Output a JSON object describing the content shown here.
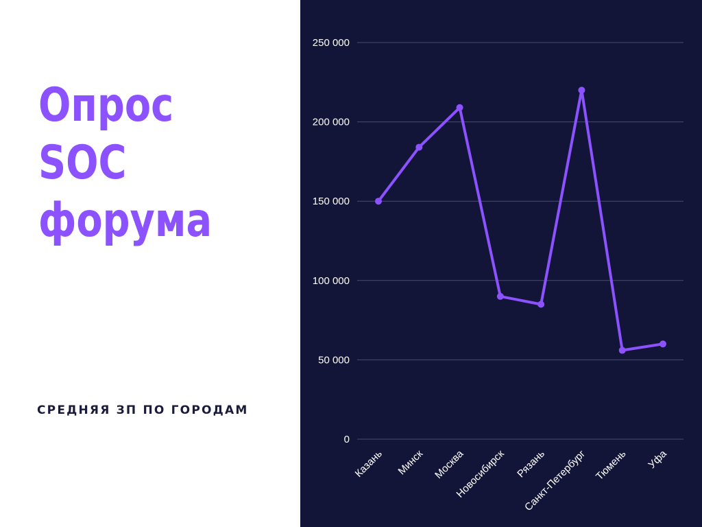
{
  "headline": {
    "line1": "Опрос",
    "line2": "SOC",
    "line3": "форума"
  },
  "subtitle": "СРЕДНЯЯ ЗП ПО ГОРОДАМ",
  "colors": {
    "accent": "#8c52ff",
    "chart_background": "#131538",
    "line": "#8c52ff",
    "grid": "#4a4c6e",
    "text_dark": "#1a1a3a"
  },
  "chart_data": {
    "type": "line",
    "title": "",
    "xlabel": "",
    "ylabel": "",
    "categories": [
      "Казань",
      "Минск",
      "Москва",
      "Новосибирск",
      "Рязань",
      "Санкт-Петербург",
      "Тюмень",
      "Уфа"
    ],
    "series": [
      {
        "values": [
          150000,
          184000,
          209000,
          90000,
          85000,
          220000,
          56000,
          60000
        ]
      }
    ],
    "ylim": [
      0,
      250000
    ],
    "yticks": [
      0,
      50000,
      100000,
      150000,
      200000,
      250000
    ],
    "ytick_labels": [
      "0",
      "50 000",
      "100 000",
      "150 000",
      "200 000",
      "250 000"
    ],
    "grid": true,
    "legend": "none"
  }
}
